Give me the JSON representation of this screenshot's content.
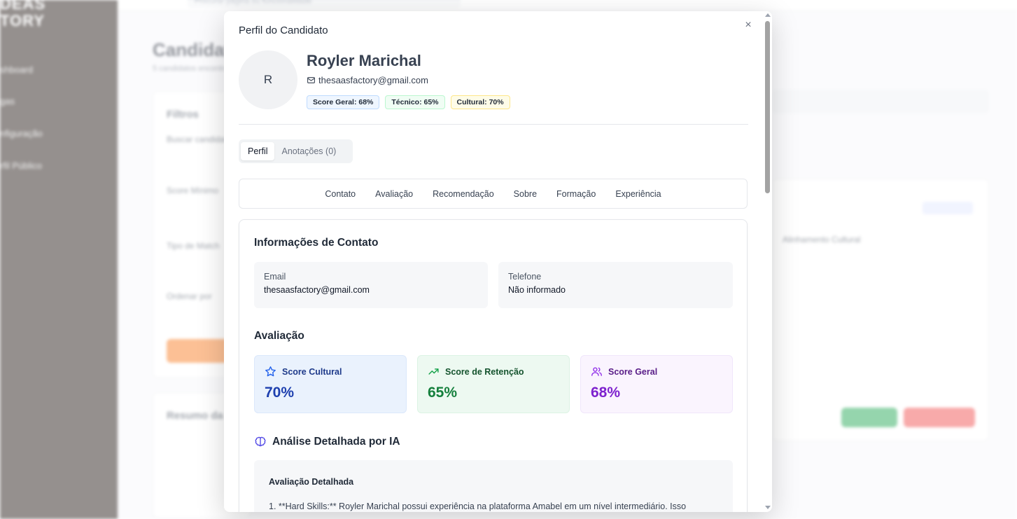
{
  "modal": {
    "title": "Perfil do Candidato",
    "close_glyph": "×"
  },
  "candidate": {
    "initial": "R",
    "name": "Royler Marichal",
    "email": "thesaasfactory@gmail.com",
    "badges": {
      "overall": "Score Geral: 68%",
      "technical": "Técnico: 65%",
      "cultural": "Cultural: 70%"
    }
  },
  "tabs": [
    {
      "label": "Perfil",
      "active": true
    },
    {
      "label": "Anotações (0)",
      "active": false
    }
  ],
  "section_nav": [
    "Contato",
    "Avaliação",
    "Recomendação",
    "Sobre",
    "Formação",
    "Experiência"
  ],
  "contact": {
    "title": "Informações de Contato",
    "email_label": "Email",
    "email_value": "thesaasfactory@gmail.com",
    "phone_label": "Telefone",
    "phone_value": "Não informado"
  },
  "evaluation": {
    "title": "Avaliação",
    "cultural_label": "Score Cultural",
    "cultural_value": "70%",
    "retention_label": "Score de Retenção",
    "retention_value": "65%",
    "overall_label": "Score Geral",
    "overall_value": "68%"
  },
  "ai_analysis": {
    "title": "Análise Detalhada por IA",
    "subtitle": "Avaliação Detalhada",
    "text": "1. **Hard Skills:** Royler Marichal possui experiência na plataforma Amabel em um nível intermediário. Isso"
  },
  "colors": {
    "cultural": "#1e40af",
    "retention": "#15803d",
    "overall": "#7e22ce",
    "sidebar": "#140a05"
  }
}
